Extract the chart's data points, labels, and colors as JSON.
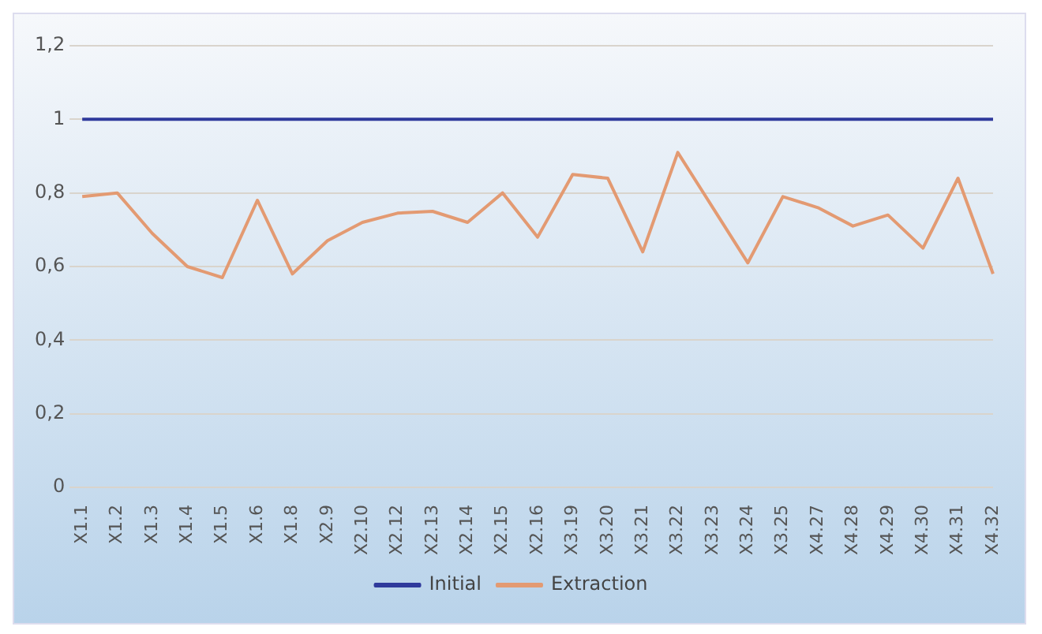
{
  "chart_data": {
    "type": "line",
    "categories": [
      "X1.1",
      "X1.2",
      "X1.3",
      "X1.4",
      "X1.5",
      "X1.6",
      "X1.8",
      "X2.9",
      "X2.10",
      "X2.12",
      "X2.13",
      "X2.14",
      "X2.15",
      "X2.16",
      "X3.19",
      "X3.20",
      "X3.21",
      "X3.22",
      "X3.23",
      "X3.24",
      "X3.25",
      "X4.27",
      "X4.28",
      "X4.29",
      "X4.30",
      "X4.31",
      "X4.32"
    ],
    "series": [
      {
        "name": "Initial",
        "color": "#2f3a9c",
        "values": [
          1,
          1,
          1,
          1,
          1,
          1,
          1,
          1,
          1,
          1,
          1,
          1,
          1,
          1,
          1,
          1,
          1,
          1,
          1,
          1,
          1,
          1,
          1,
          1,
          1,
          1,
          1
        ]
      },
      {
        "name": "Extraction",
        "color": "#e39a72",
        "values": [
          0.79,
          0.8,
          0.69,
          0.6,
          0.57,
          0.78,
          0.58,
          0.67,
          0.72,
          0.745,
          0.75,
          0.72,
          0.8,
          0.68,
          0.85,
          0.84,
          0.64,
          0.91,
          0.76,
          0.61,
          0.79,
          0.76,
          0.71,
          0.74,
          0.65,
          0.84,
          0.58
        ]
      }
    ],
    "ylim": [
      0,
      1.2
    ],
    "yticks": [
      0,
      {
        "value": 0.2,
        "label": "0,2"
      },
      {
        "value": 0.4,
        "label": "0,4"
      },
      {
        "value": 0.6,
        "label": "0,6"
      },
      {
        "value": 0.8,
        "label": "0,8"
      },
      1,
      {
        "value": 1.2,
        "label": "1,2"
      }
    ],
    "grid": "y",
    "legend": "bottom",
    "marker": "none",
    "line_style": "solid"
  }
}
